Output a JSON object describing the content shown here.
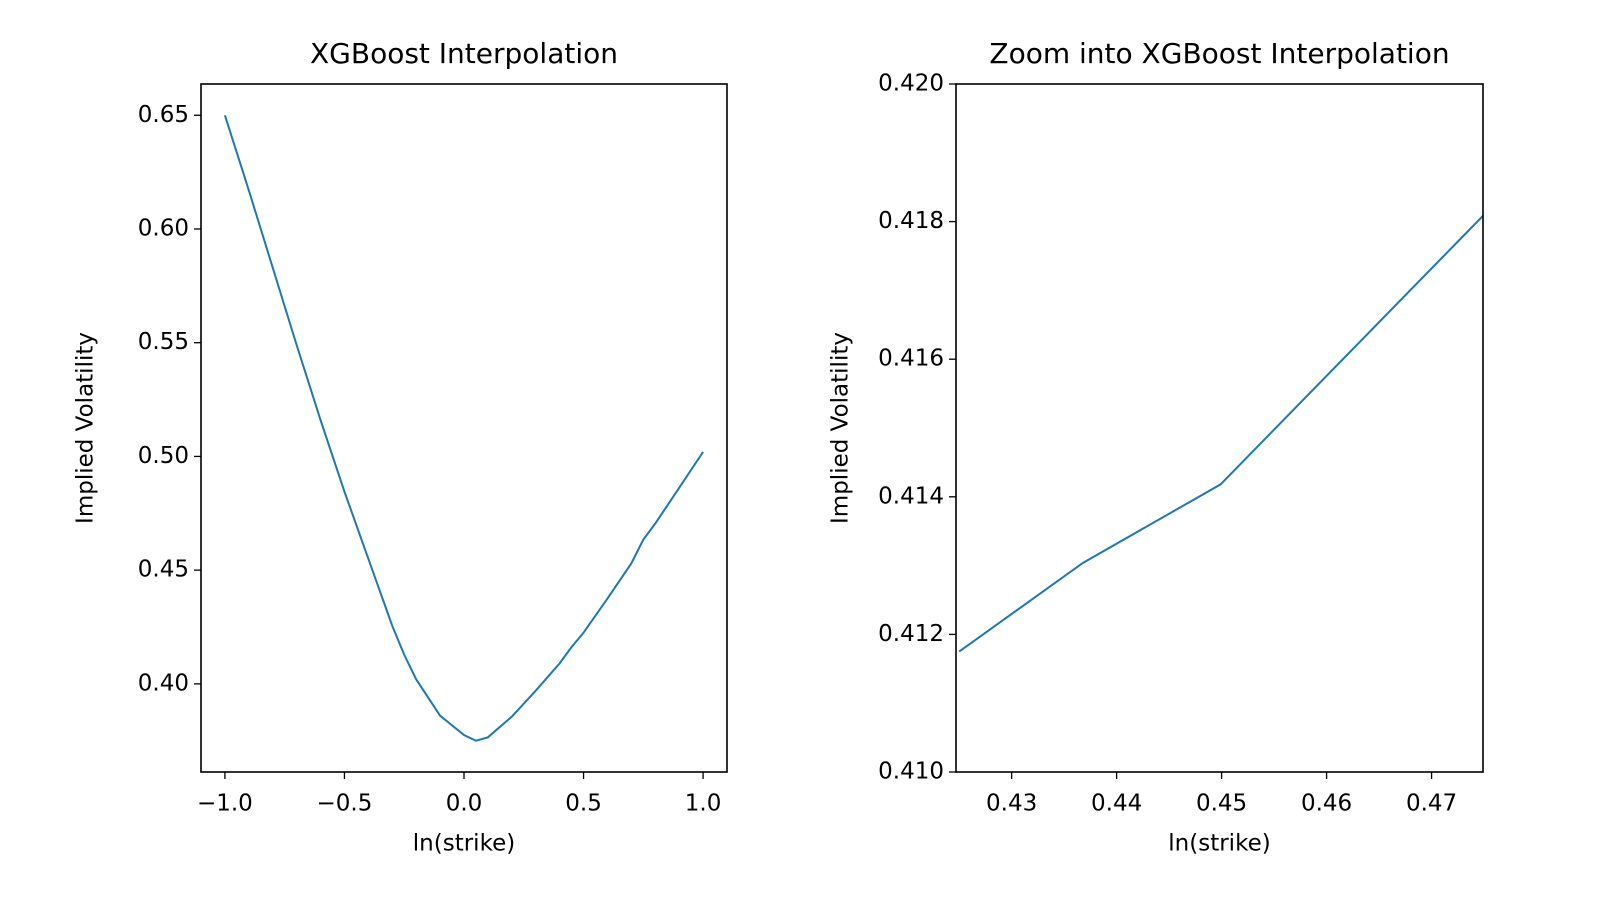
{
  "chart_data": [
    {
      "type": "line",
      "title": "XGBoost Interpolation",
      "x_label": "ln(strike)",
      "y_label": "Implied Volatility",
      "x": [
        -1.0,
        -0.9,
        -0.8,
        -0.7,
        -0.6,
        -0.5,
        -0.4,
        -0.3,
        -0.25,
        -0.2,
        -0.1,
        0.0,
        0.05,
        0.1,
        0.2,
        0.3,
        0.4,
        0.45,
        0.5,
        0.6,
        0.7,
        0.75,
        0.8,
        0.9,
        1.0
      ],
      "series": [
        {
          "name": "XGBoost",
          "color": "#1f77b4",
          "values": [
            0.65,
            0.617,
            0.583,
            0.549,
            0.516,
            0.4845,
            0.455,
            0.4255,
            0.4128,
            0.402,
            0.386,
            0.3775,
            0.375,
            0.3765,
            0.3856,
            0.397,
            0.409,
            0.4162,
            0.4225,
            0.4375,
            0.453,
            0.4634,
            0.4705,
            0.4862,
            0.502
          ]
        }
      ],
      "xlim": [
        -1.1,
        1.1
      ],
      "ylim": [
        0.36125,
        0.66375
      ],
      "xticks": [
        {
          "value": -1.0,
          "label": "−1.0"
        },
        {
          "value": -0.5,
          "label": "−0.5"
        },
        {
          "value": 0.0,
          "label": "0.0"
        },
        0.5,
        {
          "value": 1.0,
          "label": "1.0"
        }
      ],
      "yticks": [
        {
          "value": 0.4,
          "label": "0.40"
        },
        0.45,
        {
          "value": 0.5,
          "label": "0.50"
        },
        0.55,
        {
          "value": 0.6,
          "label": "0.60"
        },
        0.65
      ]
    },
    {
      "type": "line",
      "title": "Zoom into XGBoost Interpolation",
      "x_label": "ln(strike)",
      "y_label": "Implied Volatility",
      "x": [
        0.425,
        0.4368,
        0.4499,
        0.475
      ],
      "series": [
        {
          "name": "XGBoost",
          "color": "#1f77b4",
          "values": [
            0.41175,
            0.41304,
            0.41418,
            0.4181
          ]
        }
      ],
      "xlim": [
        0.4247,
        0.4749
      ],
      "ylim": [
        0.41,
        0.42
      ],
      "xticks": [
        0.43,
        0.44,
        0.45,
        0.46,
        0.47
      ],
      "yticks": [
        {
          "value": 0.41,
          "label": "0.410"
        },
        {
          "value": 0.412,
          "label": "0.412"
        },
        {
          "value": 0.414,
          "label": "0.414"
        },
        {
          "value": 0.416,
          "label": "0.416"
        },
        {
          "value": 0.418,
          "label": "0.418"
        },
        {
          "value": 0.42,
          "label": "0.420"
        }
      ]
    }
  ]
}
